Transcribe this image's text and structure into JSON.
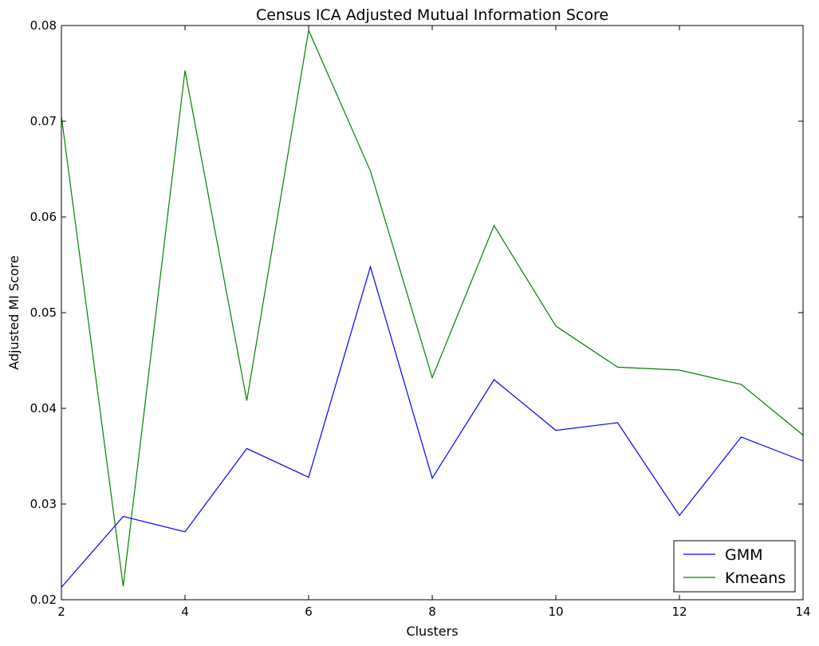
{
  "chart_data": {
    "type": "line",
    "title": "Census ICA Adjusted Mutual Information Score",
    "xlabel": "Clusters",
    "ylabel": "Adjusted MI Score",
    "xlim": [
      2,
      14
    ],
    "ylim": [
      0.02,
      0.08
    ],
    "xticks": [
      "2",
      "4",
      "6",
      "8",
      "10",
      "12",
      "14"
    ],
    "yticks": [
      "0.02",
      "0.03",
      "0.04",
      "0.05",
      "0.06",
      "0.07",
      "0.08"
    ],
    "grid": false,
    "legend_position": "lower-right",
    "x": [
      2,
      3,
      4,
      5,
      6,
      7,
      8,
      9,
      10,
      11,
      12,
      13,
      14
    ],
    "series": [
      {
        "name": "GMM",
        "color": "#0000ff",
        "values": [
          0.0213,
          0.0287,
          0.0271,
          0.0358,
          0.0328,
          0.0548,
          0.0327,
          0.043,
          0.0377,
          0.0385,
          0.0288,
          0.037,
          0.0345
        ]
      },
      {
        "name": "Kmeans",
        "color": "#008000",
        "values": [
          0.0705,
          0.0214,
          0.0753,
          0.0408,
          0.0795,
          0.0648,
          0.0432,
          0.0591,
          0.0486,
          0.0443,
          0.044,
          0.0425,
          0.0372
        ]
      }
    ]
  }
}
